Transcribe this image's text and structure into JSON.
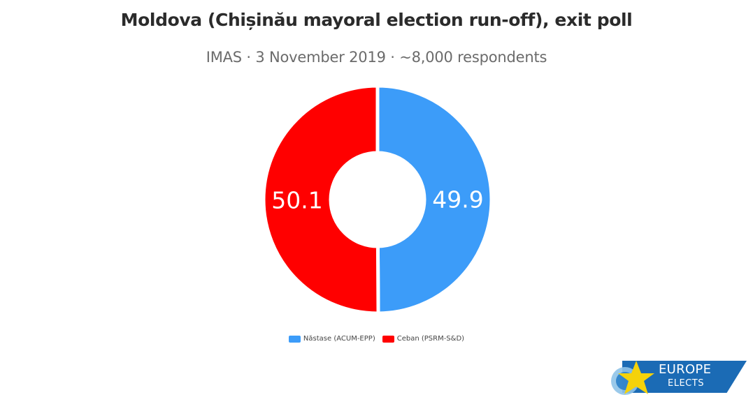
{
  "chart_data": {
    "type": "pie",
    "title": "Moldova (Chișinău mayoral election run-off), exit poll",
    "subtitle": "IMAS · 3 November 2019 · ~8,000 respondents",
    "slices": [
      {
        "label": "Năstase (ACUM-EPP)",
        "value": 49.9,
        "color": "#3c9cf9"
      },
      {
        "label": "Ceban (PSRM-S&D)",
        "value": 50.1,
        "color": "#ff0000"
      }
    ],
    "legend_position": "bottom",
    "style": "donut"
  },
  "logo": {
    "line1": "EUROPE",
    "line2": "ELECTS",
    "banner_color": "#1b6bb5",
    "star_color": "#f5d20a"
  }
}
